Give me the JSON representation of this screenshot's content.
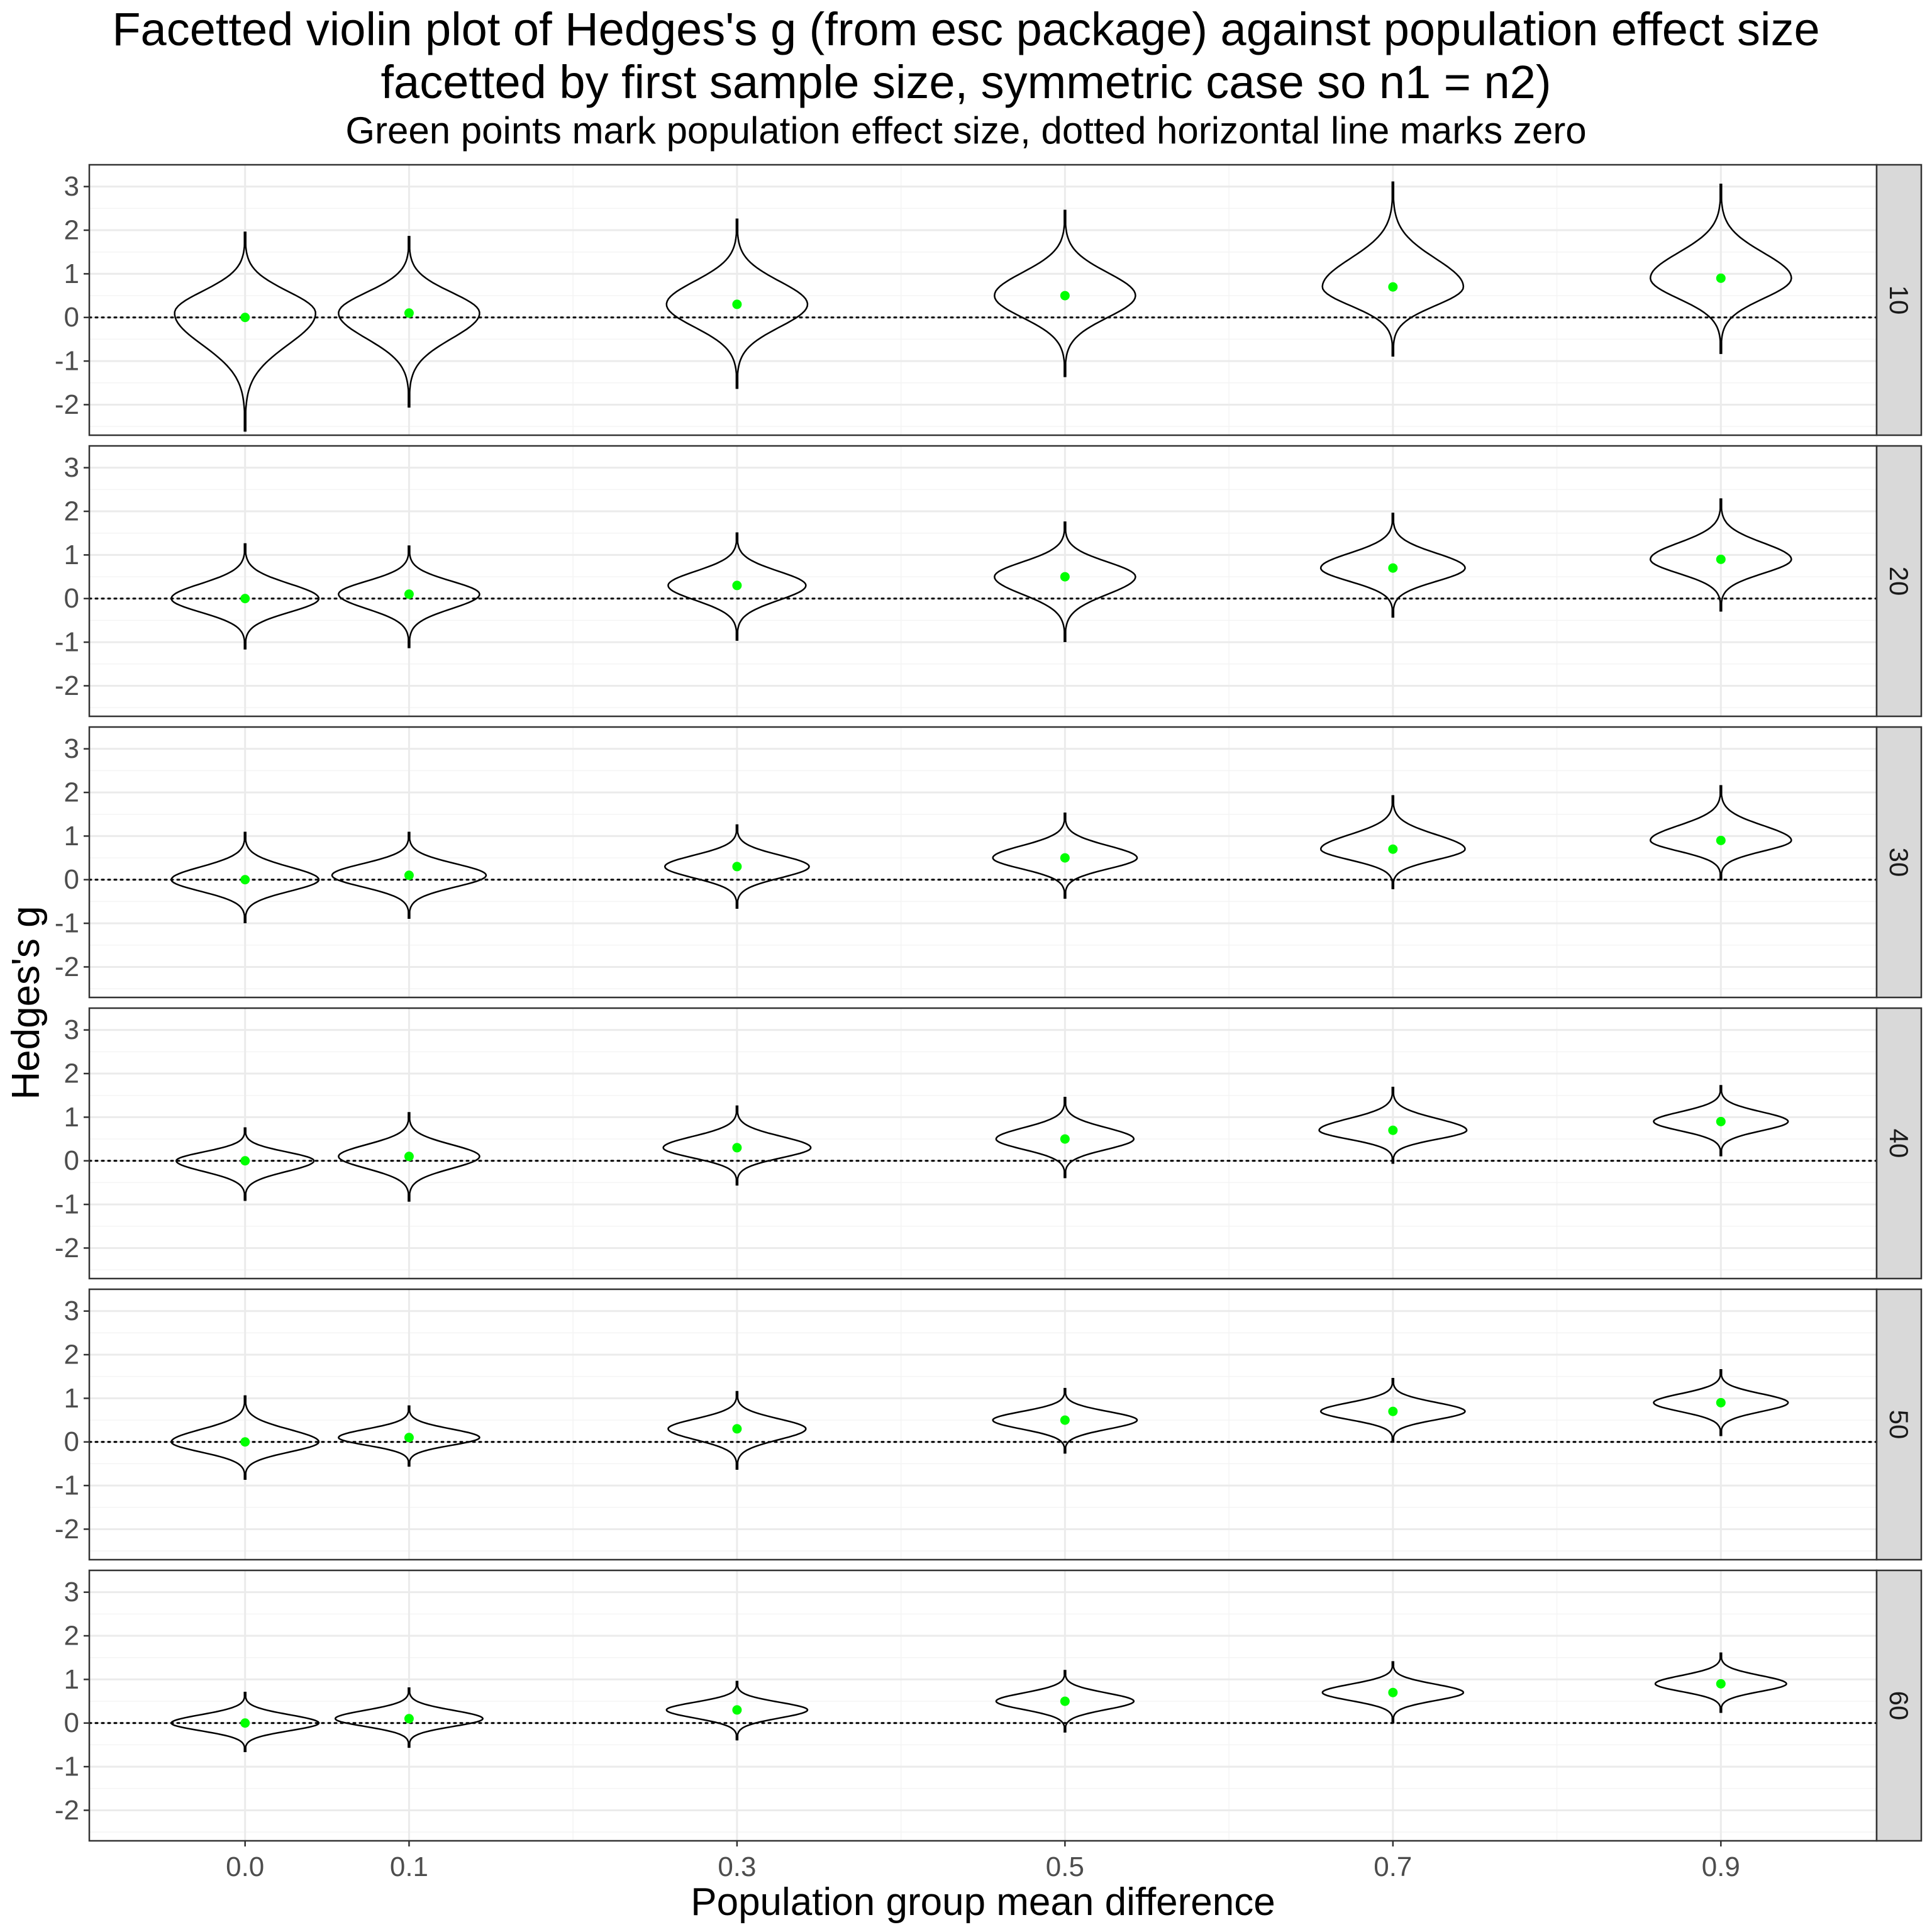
{
  "title_line1": "Facetted violin plot of Hedges's g (from esc package) against population effect size",
  "title_line2": "facetted by first sample size, symmetric case so n1 = n2)",
  "subtitle": "Green points mark population effect size, dotted horizontal line marks zero",
  "colors": {
    "point": "#00ff00",
    "violin_stroke": "#000000",
    "strip_fill": "#d9d9d9",
    "grid_major": "#ebebeb",
    "grid_minor": "#f4f4f4",
    "panel_border": "#333333"
  },
  "chart_data": {
    "type": "violin",
    "xlabel": "Population group mean difference",
    "ylabel": "Hedges's g",
    "x_categories": [
      0.0,
      0.1,
      0.3,
      0.5,
      0.7,
      0.9
    ],
    "x_tick_labels": [
      "0.0",
      "0.1",
      "0.3",
      "0.5",
      "0.7",
      "0.9"
    ],
    "xlim": [
      -0.095,
      0.995
    ],
    "ylim": [
      -2.7,
      3.5
    ],
    "y_ticks": [
      -2,
      -1,
      0,
      1,
      2,
      3
    ],
    "y_tick_labels": [
      "-2",
      "-1",
      "0",
      "1",
      "2",
      "3"
    ],
    "reference_line": {
      "y": 0,
      "style": "dotted"
    },
    "facet_variable": "first sample size",
    "facets": [
      {
        "label": "10",
        "violins": [
          {
            "x": 0.0,
            "min": -2.6,
            "max": 1.95,
            "peak": 0.1,
            "hw": 0.043,
            "point": 0.0
          },
          {
            "x": 0.1,
            "min": -2.05,
            "max": 1.85,
            "peak": 0.1,
            "hw": 0.043,
            "point": 0.1
          },
          {
            "x": 0.3,
            "min": -1.62,
            "max": 2.25,
            "peak": 0.3,
            "hw": 0.043,
            "point": 0.3
          },
          {
            "x": 0.5,
            "min": -1.35,
            "max": 2.45,
            "peak": 0.5,
            "hw": 0.043,
            "point": 0.5
          },
          {
            "x": 0.7,
            "min": -0.88,
            "max": 3.1,
            "peak": 0.7,
            "hw": 0.043,
            "point": 0.7
          },
          {
            "x": 0.9,
            "min": -0.82,
            "max": 3.05,
            "peak": 0.9,
            "hw": 0.043,
            "point": 0.9
          }
        ]
      },
      {
        "label": "20",
        "violins": [
          {
            "x": 0.0,
            "min": -1.15,
            "max": 1.25,
            "peak": 0.0,
            "hw": 0.045,
            "point": 0.0
          },
          {
            "x": 0.1,
            "min": -1.12,
            "max": 1.2,
            "peak": 0.1,
            "hw": 0.043,
            "point": 0.1
          },
          {
            "x": 0.3,
            "min": -0.95,
            "max": 1.5,
            "peak": 0.3,
            "hw": 0.042,
            "point": 0.3
          },
          {
            "x": 0.5,
            "min": -0.98,
            "max": 1.75,
            "peak": 0.5,
            "hw": 0.043,
            "point": 0.5
          },
          {
            "x": 0.7,
            "min": -0.42,
            "max": 1.95,
            "peak": 0.7,
            "hw": 0.044,
            "point": 0.7
          },
          {
            "x": 0.9,
            "min": -0.28,
            "max": 2.28,
            "peak": 0.9,
            "hw": 0.043,
            "point": 0.9
          }
        ]
      },
      {
        "label": "30",
        "violins": [
          {
            "x": 0.0,
            "min": -0.98,
            "max": 1.08,
            "peak": 0.0,
            "hw": 0.045,
            "point": 0.0
          },
          {
            "x": 0.1,
            "min": -0.88,
            "max": 1.08,
            "peak": 0.1,
            "hw": 0.047,
            "point": 0.1
          },
          {
            "x": 0.3,
            "min": -0.65,
            "max": 1.25,
            "peak": 0.3,
            "hw": 0.044,
            "point": 0.3
          },
          {
            "x": 0.5,
            "min": -0.42,
            "max": 1.52,
            "peak": 0.5,
            "hw": 0.044,
            "point": 0.5
          },
          {
            "x": 0.7,
            "min": -0.2,
            "max": 1.92,
            "peak": 0.7,
            "hw": 0.044,
            "point": 0.7
          },
          {
            "x": 0.9,
            "min": 0.0,
            "max": 2.15,
            "peak": 0.9,
            "hw": 0.043,
            "point": 0.9
          }
        ]
      },
      {
        "label": "40",
        "violins": [
          {
            "x": 0.0,
            "min": -0.9,
            "max": 0.75,
            "peak": 0.0,
            "hw": 0.042,
            "point": 0.0
          },
          {
            "x": 0.1,
            "min": -0.92,
            "max": 1.1,
            "peak": 0.1,
            "hw": 0.043,
            "point": 0.1
          },
          {
            "x": 0.3,
            "min": -0.55,
            "max": 1.25,
            "peak": 0.3,
            "hw": 0.045,
            "point": 0.3
          },
          {
            "x": 0.5,
            "min": -0.38,
            "max": 1.45,
            "peak": 0.5,
            "hw": 0.042,
            "point": 0.5
          },
          {
            "x": 0.7,
            "min": -0.05,
            "max": 1.68,
            "peak": 0.7,
            "hw": 0.045,
            "point": 0.7
          },
          {
            "x": 0.9,
            "min": 0.12,
            "max": 1.72,
            "peak": 0.9,
            "hw": 0.041,
            "point": 0.9
          }
        ]
      },
      {
        "label": "50",
        "violins": [
          {
            "x": 0.0,
            "min": -0.85,
            "max": 1.05,
            "peak": 0.0,
            "hw": 0.045,
            "point": 0.0
          },
          {
            "x": 0.1,
            "min": -0.55,
            "max": 0.82,
            "peak": 0.1,
            "hw": 0.043,
            "point": 0.1
          },
          {
            "x": 0.3,
            "min": -0.62,
            "max": 1.15,
            "peak": 0.3,
            "hw": 0.042,
            "point": 0.3
          },
          {
            "x": 0.5,
            "min": -0.25,
            "max": 1.22,
            "peak": 0.5,
            "hw": 0.044,
            "point": 0.5
          },
          {
            "x": 0.7,
            "min": 0.0,
            "max": 1.45,
            "peak": 0.7,
            "hw": 0.044,
            "point": 0.7
          },
          {
            "x": 0.9,
            "min": 0.15,
            "max": 1.65,
            "peak": 0.9,
            "hw": 0.041,
            "point": 0.9
          }
        ]
      },
      {
        "label": "60",
        "violins": [
          {
            "x": 0.0,
            "min": -0.65,
            "max": 0.7,
            "peak": 0.0,
            "hw": 0.045,
            "point": 0.0
          },
          {
            "x": 0.1,
            "min": -0.55,
            "max": 0.8,
            "peak": 0.1,
            "hw": 0.045,
            "point": 0.1
          },
          {
            "x": 0.3,
            "min": -0.38,
            "max": 0.95,
            "peak": 0.3,
            "hw": 0.043,
            "point": 0.3
          },
          {
            "x": 0.5,
            "min": -0.2,
            "max": 1.2,
            "peak": 0.5,
            "hw": 0.042,
            "point": 0.5
          },
          {
            "x": 0.7,
            "min": 0.02,
            "max": 1.4,
            "peak": 0.7,
            "hw": 0.043,
            "point": 0.7
          },
          {
            "x": 0.9,
            "min": 0.25,
            "max": 1.6,
            "peak": 0.9,
            "hw": 0.04,
            "point": 0.9
          }
        ]
      }
    ]
  }
}
